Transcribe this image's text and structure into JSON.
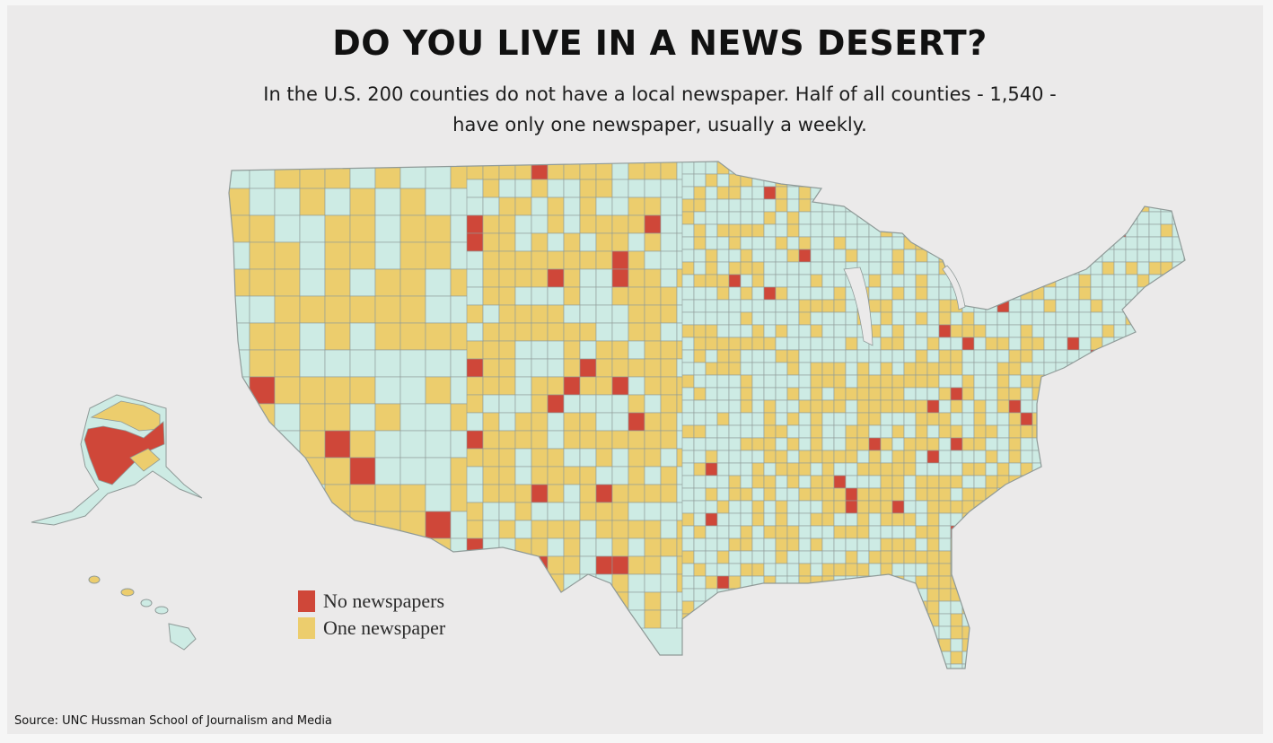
{
  "title": "DO YOU LIVE IN A NEWS DESERT?",
  "subtitle": {
    "line1": "In the U.S. 200 counties do not have a local newspaper.  Half of all counties - 1,540 -",
    "line2": "have only one newspaper, usually a weekly."
  },
  "legend": [
    {
      "label": "No newspapers",
      "color": "#cf4739"
    },
    {
      "label": "One newspaper",
      "color": "#eccd6d"
    }
  ],
  "colors": {
    "background": "#ebeaea",
    "county_default": "#cdebe4",
    "county_border": "#8f9a98",
    "no_newspaper": "#cf4739",
    "one_newspaper": "#eccd6d"
  },
  "source": "Source:  UNC Hussman School of Journalism and Media"
}
